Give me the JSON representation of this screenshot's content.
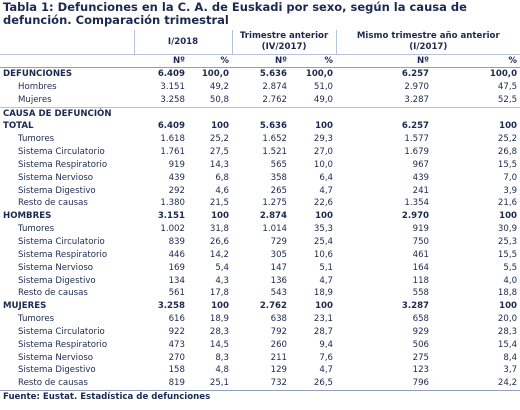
{
  "title": "Tabla 1: Defunciones en la C. A. de Euskadi por sexo, según la causa de defunción. Comparación trimestral",
  "table": {
    "groups": [
      "I/2018",
      "Trimestre anterior (IV/2017)",
      "Mismo trimestre año anterior (I/2017)"
    ],
    "subheaders": [
      "Nº",
      "%",
      "Nº",
      "%",
      "Nº",
      "%"
    ],
    "rows": [
      [
        "DEFUNCIONES",
        "6.409",
        "100,0",
        "5.636",
        "100,0",
        "6.257",
        "100,0"
      ],
      [
        "Hombres",
        "3.151",
        "49,2",
        "2.874",
        "51,0",
        "2.970",
        "47,5"
      ],
      [
        "Mujeres",
        "3.258",
        "50,8",
        "2.762",
        "49,0",
        "3.287",
        "52,5"
      ],
      [
        "CAUSA DE DEFUNCIÓN"
      ],
      [
        "TOTAL",
        "6.409",
        "100",
        "5.636",
        "100",
        "6.257",
        "100"
      ],
      [
        "Tumores",
        "1.618",
        "25,2",
        "1.652",
        "29,3",
        "1.577",
        "25,2"
      ],
      [
        "Sistema Circulatorio",
        "1.761",
        "27,5",
        "1.521",
        "27,0",
        "1.679",
        "26,8"
      ],
      [
        "Sistema Respiratorio",
        "919",
        "14,3",
        "565",
        "10,0",
        "967",
        "15,5"
      ],
      [
        "Sistema Nervioso",
        "439",
        "6,8",
        "358",
        "6,4",
        "439",
        "7,0"
      ],
      [
        "Sistema Digestivo",
        "292",
        "4,6",
        "265",
        "4,7",
        "241",
        "3,9"
      ],
      [
        "Resto de causas",
        "1.380",
        "21,5",
        "1.275",
        "22,6",
        "1.354",
        "21,6"
      ],
      [
        "HOMBRES",
        "3.151",
        "100",
        "2.874",
        "100",
        "2.970",
        "100"
      ],
      [
        "Tumores",
        "1.002",
        "31,8",
        "1.014",
        "35,3",
        "919",
        "30,9"
      ],
      [
        "Sistema Circulatorio",
        "839",
        "26,6",
        "729",
        "25,4",
        "750",
        "25,3"
      ],
      [
        "Sistema Respiratorio",
        "446",
        "14,2",
        "305",
        "10,6",
        "461",
        "15,5"
      ],
      [
        "Sistema Nervioso",
        "169",
        "5,4",
        "147",
        "5,1",
        "164",
        "5,5"
      ],
      [
        "Sistema Digestivo",
        "134",
        "4,3",
        "136",
        "4,7",
        "118",
        "4,0"
      ],
      [
        "Resto de causas",
        "561",
        "17,8",
        "543",
        "18,9",
        "558",
        "18,8"
      ],
      [
        "MUJERES",
        "3.258",
        "100",
        "2.762",
        "100",
        "3.287",
        "100"
      ],
      [
        "Tumores",
        "616",
        "18,9",
        "638",
        "23,1",
        "658",
        "20,0"
      ],
      [
        "Sistema Circulatorio",
        "922",
        "28,3",
        "792",
        "28,7",
        "929",
        "28,3"
      ],
      [
        "Sistema Respiratorio",
        "473",
        "14,5",
        "260",
        "9,4",
        "506",
        "15,4"
      ],
      [
        "Sistema Nervioso",
        "270",
        "8,3",
        "211",
        "7,6",
        "275",
        "8,4"
      ],
      [
        "Sistema Digestivo",
        "158",
        "4,8",
        "129",
        "4,7",
        "123",
        "3,7"
      ],
      [
        "Resto de causas",
        "819",
        "25,1",
        "732",
        "26,5",
        "796",
        "24,2"
      ]
    ]
  },
  "footer": "Fuente: Eustat. Estadística de defunciones"
}
